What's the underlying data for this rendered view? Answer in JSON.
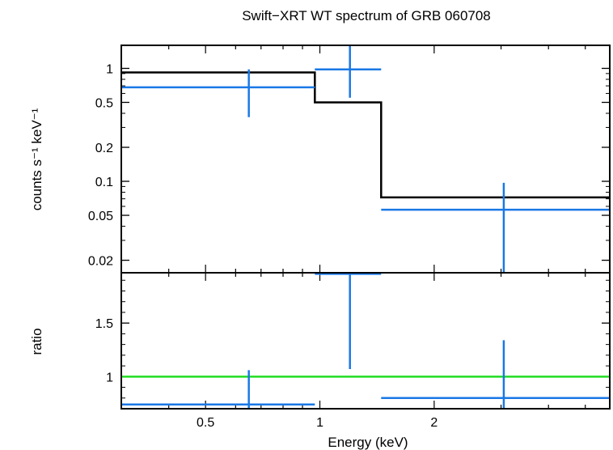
{
  "chart_data": {
    "type": "scatter",
    "title": "Swift−XRT WT spectrum of GRB 060708",
    "xlabel": "Energy (keV)",
    "x_scale": "log",
    "xlim": [
      0.3,
      5.8
    ],
    "x_ticks": [
      {
        "value": 0.5,
        "label": "0.5"
      },
      {
        "value": 1,
        "label": "1"
      },
      {
        "value": 2,
        "label": "2"
      }
    ],
    "colors": {
      "data": "#1a78e6",
      "model": "#000000",
      "unity": "#22dd22"
    },
    "panels": [
      {
        "name": "spectrum",
        "ylabel": "counts s⁻¹ keV⁻¹",
        "y_scale": "log",
        "ylim": [
          0.0155,
          1.6
        ],
        "y_ticks": [
          {
            "value": 1,
            "label": "1"
          },
          {
            "value": 0.5,
            "label": "0.5"
          },
          {
            "value": 0.2,
            "label": "0.2"
          },
          {
            "value": 0.1,
            "label": "0.1"
          },
          {
            "value": 0.05,
            "label": "0.05"
          },
          {
            "value": 0.02,
            "label": "0.02"
          }
        ],
        "data": [
          {
            "x_lo": 0.3,
            "x_hi": 0.97,
            "x": 0.65,
            "y": 0.68,
            "y_lo": 0.37,
            "y_hi": 0.98
          },
          {
            "x_lo": 0.97,
            "x_hi": 1.45,
            "x": 1.2,
            "y": 0.98,
            "y_lo": 0.55,
            "y_hi": 1.6
          },
          {
            "x_lo": 1.45,
            "x_hi": 5.8,
            "x": 3.05,
            "y": 0.056,
            "y_lo": 0.0155,
            "y_hi": 0.097
          }
        ],
        "model": [
          {
            "x_lo": 0.3,
            "x_hi": 0.97,
            "y": 0.92
          },
          {
            "x_lo": 0.97,
            "x_hi": 1.45,
            "y": 0.5
          },
          {
            "x_lo": 1.45,
            "x_hi": 5.8,
            "y": 0.072
          }
        ]
      },
      {
        "name": "ratio",
        "ylabel": "ratio",
        "y_scale": "linear",
        "ylim": [
          0.7,
          1.97
        ],
        "y_ticks": [
          {
            "value": 1.5,
            "label": "1.5"
          },
          {
            "value": 1,
            "label": "1"
          }
        ],
        "reference_line": 1,
        "data": [
          {
            "x_lo": 0.3,
            "x_hi": 0.97,
            "x": 0.65,
            "y": 0.74,
            "y_lo": 0.7,
            "y_hi": 1.06
          },
          {
            "x_lo": 0.97,
            "x_hi": 1.45,
            "x": 1.2,
            "y": 1.96,
            "y_lo": 1.07,
            "y_hi": 1.97
          },
          {
            "x_lo": 1.45,
            "x_hi": 5.8,
            "x": 3.05,
            "y": 0.8,
            "y_lo": 0.7,
            "y_hi": 1.34
          }
        ]
      }
    ]
  }
}
